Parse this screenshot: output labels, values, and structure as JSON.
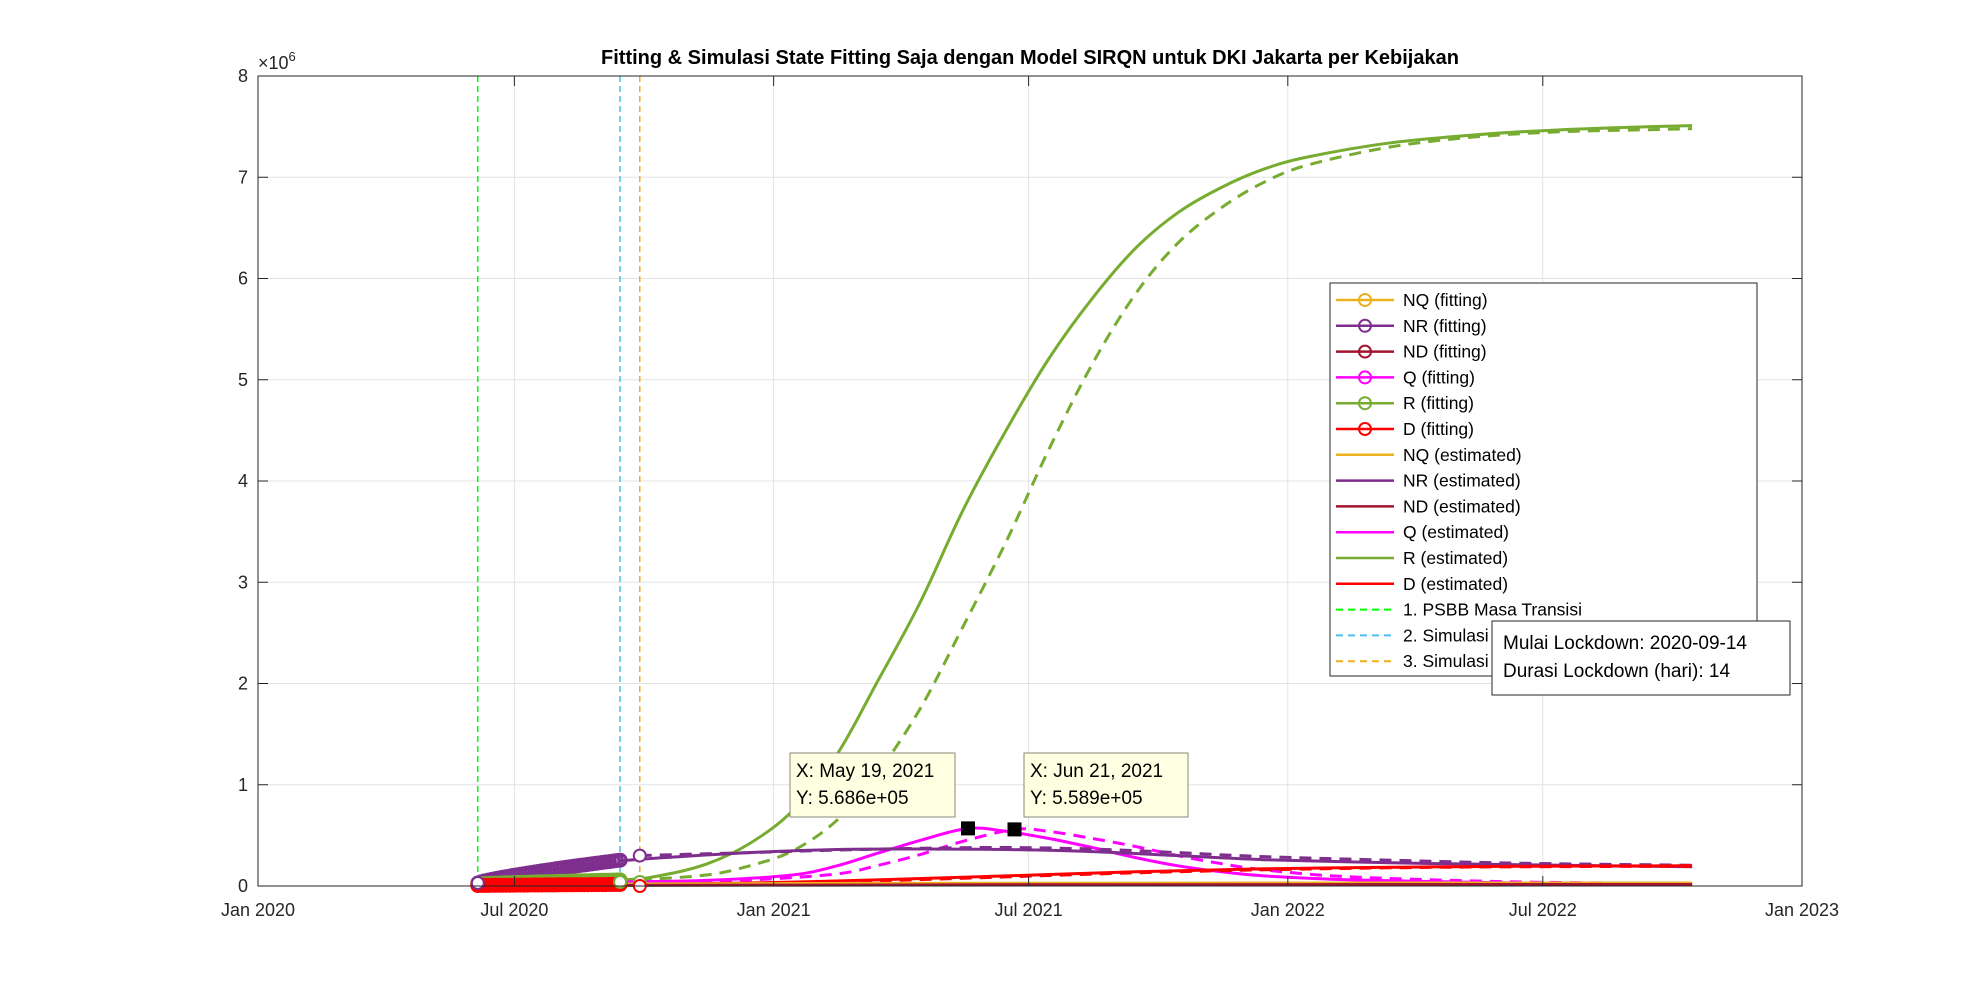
{
  "chart_data": {
    "type": "line",
    "title": "Fitting & Simulasi State Fitting Saja dengan Model SIRQN untuk DKI Jakarta per Kebijakan",
    "xlabel": "",
    "ylabel": "",
    "y_exponent_label": "×10",
    "y_exponent_power": "6",
    "xlim": [
      "2020-01-01",
      "2023-01-01"
    ],
    "ylim": [
      0,
      8000000
    ],
    "x_ticks": [
      "Jan 2020",
      "Jul 2020",
      "Jan 2021",
      "Jul 2021",
      "Jan 2022",
      "Jul 2022",
      "Jan 2023"
    ],
    "x_tick_dates": [
      "2020-01-01",
      "2020-07-01",
      "2021-01-01",
      "2021-07-01",
      "2022-01-01",
      "2022-07-01",
      "2023-01-01"
    ],
    "y_ticks": [
      "0",
      "1",
      "2",
      "3",
      "4",
      "5",
      "6",
      "7",
      "8"
    ],
    "grid": true,
    "legend_position": "right",
    "legend": [
      {
        "label": "NQ (fitting)",
        "color": "#EDB120",
        "style": "solid",
        "marker": "circle"
      },
      {
        "label": "NR (fitting)",
        "color": "#7E2F8E",
        "style": "solid",
        "marker": "circle"
      },
      {
        "label": "ND (fitting)",
        "color": "#A2142F",
        "style": "solid",
        "marker": "circle"
      },
      {
        "label": "Q (fitting)",
        "color": "#FF00FF",
        "style": "solid",
        "marker": "circle"
      },
      {
        "label": "R (fitting)",
        "color": "#77AC30",
        "style": "solid",
        "marker": "circle"
      },
      {
        "label": "D (fitting)",
        "color": "#FF0000",
        "style": "solid",
        "marker": "circle"
      },
      {
        "label": "NQ (estimated)",
        "color": "#EDB120",
        "style": "solid",
        "marker": "none"
      },
      {
        "label": "NR (estimated)",
        "color": "#7E2F8E",
        "style": "solid",
        "marker": "none"
      },
      {
        "label": "ND (estimated)",
        "color": "#A2142F",
        "style": "solid",
        "marker": "none"
      },
      {
        "label": "Q (estimated)",
        "color": "#FF00FF",
        "style": "solid",
        "marker": "none"
      },
      {
        "label": "R (estimated)",
        "color": "#77AC30",
        "style": "solid",
        "marker": "none"
      },
      {
        "label": "D (estimated)",
        "color": "#FF0000",
        "style": "solid",
        "marker": "none"
      },
      {
        "label": "1. PSBB Masa Transisi",
        "color": "#00FF00",
        "style": "dashed",
        "marker": "none"
      },
      {
        "label": "2. Simulasi Lockdown Total",
        "color": "#4DBEEE",
        "style": "dashed",
        "marker": "none"
      },
      {
        "label": "3. Simulasi Pelonggaran Lockdown Total",
        "color": "#EDB120",
        "style": "dashed",
        "marker": "none"
      }
    ],
    "vertical_lines": [
      {
        "date": "2020-06-05",
        "color": "#00FF00"
      },
      {
        "date": "2020-09-14",
        "color": "#4DBEEE"
      },
      {
        "date": "2020-09-28",
        "color": "#EDB120"
      }
    ],
    "series": [
      {
        "name": "R (estimated)",
        "color": "#77AC30",
        "dash": false,
        "x": [
          "2020-06-05",
          "2020-09-14",
          "2020-10-15",
          "2020-11-15",
          "2020-12-15",
          "2021-01-15",
          "2021-02-15",
          "2021-03-15",
          "2021-04-15",
          "2021-05-15",
          "2021-06-15",
          "2021-07-15",
          "2021-08-15",
          "2021-09-15",
          "2021-10-15",
          "2021-11-15",
          "2021-12-15",
          "2022-01-15",
          "2022-03-15",
          "2022-05-15",
          "2022-07-15",
          "2022-09-15",
          "2022-10-15"
        ],
        "y": [
          20000,
          60000,
          110000,
          220000,
          420000,
          750000,
          1300000,
          2000000,
          2800000,
          3700000,
          4500000,
          5200000,
          5800000,
          6300000,
          6650000,
          6900000,
          7080000,
          7200000,
          7340000,
          7420000,
          7470000,
          7500000,
          7510000
        ]
      },
      {
        "name": "R (estimated)",
        "color": "#77AC30",
        "dash": true,
        "x": [
          "2020-09-28",
          "2020-11-15",
          "2020-12-15",
          "2021-01-15",
          "2021-02-15",
          "2021-03-15",
          "2021-04-15",
          "2021-05-15",
          "2021-06-15",
          "2021-07-15",
          "2021-08-15",
          "2021-09-15",
          "2021-10-15",
          "2021-11-15",
          "2021-12-15",
          "2022-01-15",
          "2022-03-15",
          "2022-05-15",
          "2022-07-15",
          "2022-09-15",
          "2022-10-15"
        ],
        "y": [
          60000,
          110000,
          200000,
          350000,
          650000,
          1100000,
          1750000,
          2550000,
          3400000,
          4300000,
          5150000,
          5850000,
          6350000,
          6700000,
          6950000,
          7120000,
          7300000,
          7400000,
          7450000,
          7470000,
          7480000
        ]
      },
      {
        "name": "Q (estimated)",
        "color": "#FF00FF",
        "dash": false,
        "x": [
          "2020-06-05",
          "2020-09-14",
          "2020-11-15",
          "2021-01-15",
          "2021-02-15",
          "2021-03-15",
          "2021-04-15",
          "2021-05-19",
          "2021-06-15",
          "2021-07-15",
          "2021-08-15",
          "2021-09-15",
          "2021-10-15",
          "2021-11-15",
          "2021-12-15",
          "2022-02-15",
          "2022-06-15",
          "2022-10-15"
        ],
        "y": [
          15000,
          40000,
          55000,
          110000,
          200000,
          320000,
          450000,
          568600,
          540000,
          470000,
          380000,
          280000,
          200000,
          140000,
          100000,
          60000,
          30000,
          20000
        ]
      },
      {
        "name": "Q (estimated)",
        "color": "#FF00FF",
        "dash": true,
        "x": [
          "2020-09-28",
          "2020-12-15",
          "2021-02-15",
          "2021-03-15",
          "2021-04-15",
          "2021-05-15",
          "2021-06-21",
          "2021-07-15",
          "2021-08-15",
          "2021-09-15",
          "2021-10-15",
          "2021-11-15",
          "2021-12-15",
          "2022-02-15",
          "2022-06-15",
          "2022-10-15"
        ],
        "y": [
          40000,
          60000,
          120000,
          200000,
          310000,
          440000,
          558900,
          540000,
          470000,
          390000,
          300000,
          220000,
          160000,
          90000,
          40000,
          25000
        ]
      },
      {
        "name": "NR (estimated)",
        "color": "#7E2F8E",
        "dash": false,
        "x": [
          "2020-09-14",
          "2020-10-15",
          "2020-12-15",
          "2021-02-15",
          "2021-04-15",
          "2021-06-15",
          "2021-08-15",
          "2021-10-15",
          "2021-12-15",
          "2022-03-15",
          "2022-06-15",
          "2022-10-15"
        ],
        "y": [
          250000,
          280000,
          330000,
          360000,
          365000,
          360000,
          340000,
          300000,
          260000,
          230000,
          210000,
          190000
        ]
      },
      {
        "name": "NR (estimated)",
        "color": "#7E2F8E",
        "dash": true,
        "x": [
          "2020-09-28",
          "2020-12-15",
          "2021-02-15",
          "2021-04-15",
          "2021-06-15",
          "2021-08-15",
          "2021-10-15",
          "2021-12-15",
          "2022-03-15",
          "2022-06-15",
          "2022-10-15"
        ],
        "y": [
          300000,
          330000,
          355000,
          372000,
          380000,
          365000,
          330000,
          290000,
          255000,
          225000,
          205000
        ]
      },
      {
        "name": "D (estimated)",
        "color": "#FF0000",
        "dash": false,
        "x": [
          "2020-06-05",
          "2020-09-14",
          "2020-12-15",
          "2021-03-15",
          "2021-06-15",
          "2021-09-15",
          "2021-12-15",
          "2022-03-15",
          "2022-06-15",
          "2022-10-15"
        ],
        "y": [
          5000,
          15000,
          30000,
          60000,
          100000,
          140000,
          170000,
          185000,
          195000,
          200000
        ]
      },
      {
        "name": "D (estimated)",
        "color": "#FF0000",
        "dash": true,
        "x": [
          "2020-09-28",
          "2020-12-15",
          "2021-03-15",
          "2021-06-15",
          "2021-09-15",
          "2021-12-15",
          "2022-03-15",
          "2022-06-15",
          "2022-10-15"
        ],
        "y": [
          15000,
          25000,
          50000,
          90000,
          130000,
          160000,
          180000,
          190000,
          195000
        ]
      },
      {
        "name": "NQ (estimated)",
        "color": "#EDB120",
        "dash": false,
        "x": [
          "2020-06-05",
          "2020-09-14",
          "2021-01-15",
          "2021-06-15",
          "2022-01-15",
          "2022-10-15"
        ],
        "y": [
          10000,
          20000,
          25000,
          28000,
          30000,
          30000
        ]
      },
      {
        "name": "ND (estimated)",
        "color": "#A2142F",
        "dash": false,
        "x": [
          "2020-06-05",
          "2020-09-14",
          "2021-01-15",
          "2021-06-15",
          "2022-01-15",
          "2022-10-15"
        ],
        "y": [
          3000,
          6000,
          9000,
          12000,
          14000,
          15000
        ]
      }
    ],
    "fitting_series": [
      {
        "name": "NR (fitting)",
        "color": "#7E2F8E",
        "x_start": "2020-06-05",
        "x_end": "2020-09-14",
        "y_start": 30000,
        "y_end": 255000
      },
      {
        "name": "R (fitting)",
        "color": "#77AC30",
        "x_start": "2020-06-05",
        "x_end": "2020-09-14",
        "y_start": 20000,
        "y_end": 60000
      },
      {
        "name": "D (fitting)",
        "color": "#FF0000",
        "x_start": "2020-06-05",
        "x_end": "2020-09-14",
        "y_start": 5000,
        "y_end": 15000
      }
    ],
    "highlight_markers": [
      {
        "x": "2020-09-28",
        "y": 300000,
        "color": "#7E2F8E"
      },
      {
        "x": "2020-09-14",
        "y": 40000,
        "color": "#77AC30"
      },
      {
        "x": "2020-09-28",
        "y": 40000,
        "color": "#77AC30"
      },
      {
        "x": "2020-09-28",
        "y": 0,
        "color": "#FF0000"
      },
      {
        "x": "2020-06-05",
        "y": 30000,
        "color": "#7E2F8E"
      }
    ],
    "datatips": [
      {
        "x": "2021-05-19",
        "y": 568600,
        "line1": "X: May 19, 2021",
        "line2": "Y: 5.686e+05"
      },
      {
        "x": "2021-06-21",
        "y": 558900,
        "line1": "X: Jun 21, 2021",
        "line2": "Y: 5.589e+05"
      }
    ],
    "annotation": {
      "line1": "Mulai Lockdown: 2020-09-14",
      "line2": "Durasi Lockdown (hari): 14"
    }
  }
}
